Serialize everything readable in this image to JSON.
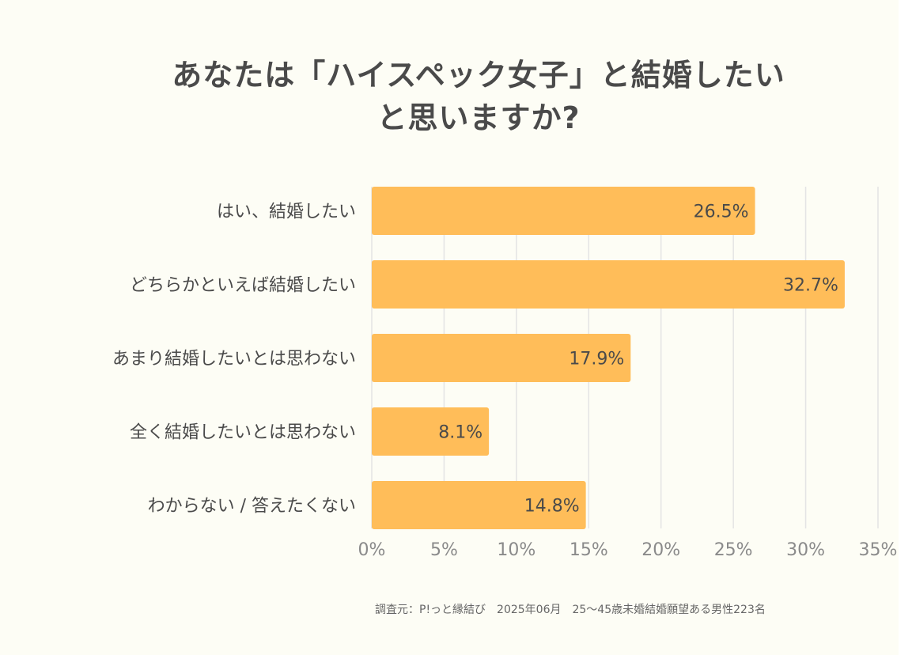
{
  "title_lines": [
    "あなたは「ハイスペック女子」と結婚したい",
    "と思いますか?"
  ],
  "source": "調査元：P!っと縁結び　2025年06月　25〜45歳未婚結婚願望ある男性223名",
  "chart_data": {
    "type": "bar",
    "orientation": "horizontal",
    "title": "あなたは「ハイスペック女子」と結婚したいと思いますか?",
    "categories": [
      "はい、結婚したい",
      "どちらかといえば結婚したい",
      "あまり結婚したいとは思わない",
      "全く結婚したいとは思わない",
      "わからない / 答えたくない"
    ],
    "values": [
      26.5,
      32.7,
      17.9,
      8.1,
      14.8
    ],
    "value_labels": [
      "26.5%",
      "32.7%",
      "17.9%",
      "8.1%",
      "14.8%"
    ],
    "xlim": [
      0,
      35
    ],
    "x_ticks": [
      0,
      5,
      10,
      15,
      20,
      25,
      30,
      35
    ],
    "x_tick_labels": [
      "0%",
      "5%",
      "10%",
      "15%",
      "20%",
      "25%",
      "30%",
      "35%"
    ],
    "grid": true,
    "colors": {
      "bar": "#ffbd59",
      "grid": "#e4e4e4",
      "category_text": "#4a4a4a",
      "value_text": "#4a4a4a",
      "tick_text": "#8a8a8a"
    }
  }
}
